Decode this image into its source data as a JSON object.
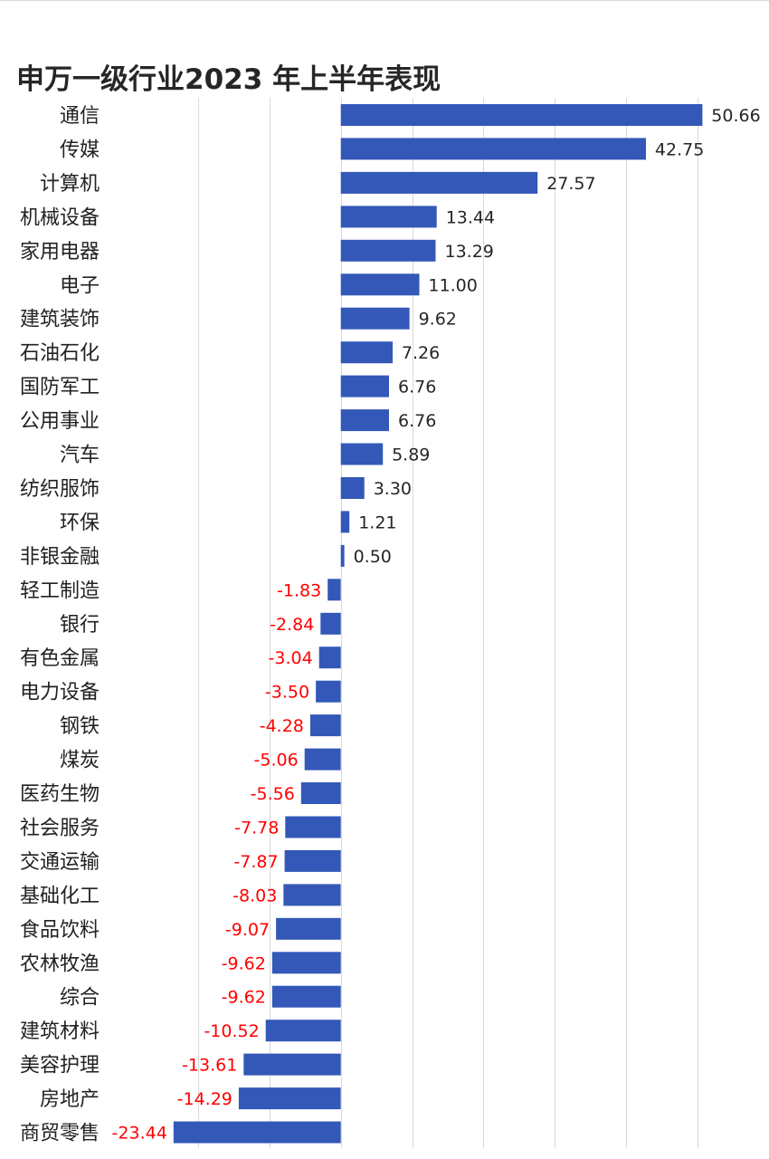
{
  "chart_data": {
    "type": "bar",
    "orientation": "horizontal",
    "title": "申万一级行业2023 年上半年表现",
    "categories": [
      "通信",
      "传媒",
      "计算机",
      "机械设备",
      "家用电器",
      "电子",
      "建筑装饰",
      "石油石化",
      "国防军工",
      "公用事业",
      "汽车",
      "纺织服饰",
      "环保",
      "非银金融",
      "轻工制造",
      "银行",
      "有色金属",
      "电力设备",
      "钢铁",
      "煤炭",
      "医药生物",
      "社会服务",
      "交通运输",
      "基础化工",
      "食品饮料",
      "农林牧渔",
      "综合",
      "建筑材料",
      "美容护理",
      "房地产",
      "商贸零售"
    ],
    "values": [
      50.66,
      42.75,
      27.57,
      13.44,
      13.29,
      11.0,
      9.62,
      7.26,
      6.76,
      6.76,
      5.89,
      3.3,
      1.21,
      0.5,
      -1.83,
      -2.84,
      -3.04,
      -3.5,
      -4.28,
      -5.06,
      -5.56,
      -7.78,
      -7.87,
      -8.03,
      -9.07,
      -9.62,
      -9.62,
      -10.52,
      -13.61,
      -14.29,
      -23.44
    ],
    "value_labels": [
      "50.66",
      "42.75",
      "27.57",
      "13.44",
      "13.29",
      "11.00",
      "9.62",
      "7.26",
      "6.76",
      "6.76",
      "5.89",
      "3.30",
      "1.21",
      "0.50",
      "-1.83",
      "-2.84",
      "-3.04",
      "-3.50",
      "-4.28",
      "-5.06",
      "-5.56",
      "-7.78",
      "-7.87",
      "-8.03",
      "-9.07",
      "-9.62",
      "-9.62",
      "-10.52",
      "-13.61",
      "-14.29",
      "-23.44"
    ],
    "xlim": [
      -30,
      60
    ],
    "grid": true,
    "legend": "none",
    "colors": {
      "bar": "#3358B8",
      "positive_label": "#262626",
      "negative_label": "#FF0000",
      "grid": "#D9D9D9"
    }
  }
}
